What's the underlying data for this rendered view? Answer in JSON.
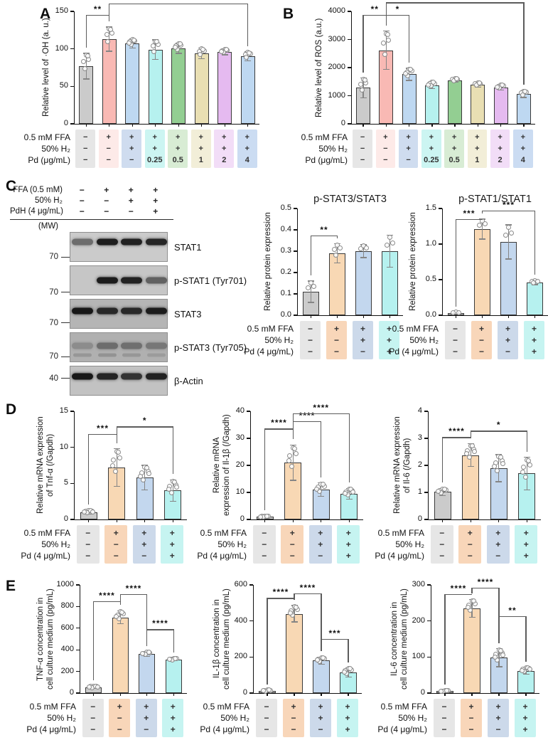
{
  "figure": {
    "panels": {
      "a": "A",
      "b": "B",
      "c": "C",
      "d": "D",
      "e": "E"
    }
  },
  "blot": {
    "header_rows": [
      {
        "label": "FFA (0.5 mM)",
        "values": [
          "−",
          "+",
          "+",
          "+"
        ]
      },
      {
        "label": "50% H₂",
        "values": [
          "−",
          "−",
          "+",
          "+"
        ]
      },
      {
        "label": "PdH (4 μg/mL)",
        "values": [
          "−",
          "−",
          "−",
          "+"
        ]
      }
    ],
    "mw_title": "(MW)",
    "strips": [
      {
        "label": "STAT1",
        "mw": "70",
        "bg": "#cbcbcb",
        "band_y": 0.32,
        "mw_y": 0.84,
        "bands": [
          0.5,
          0.92,
          0.9,
          0.88
        ]
      },
      {
        "label": "p-STAT1 (Tyr701)",
        "mw": "70",
        "bg": "#c6c6c6",
        "band_y": 0.5,
        "mw_y": 0.9,
        "bands": [
          0.04,
          0.93,
          0.9,
          0.55
        ]
      },
      {
        "label": "STAT3",
        "mw": "70",
        "bg": "#b5b5b5",
        "band_y": 0.4,
        "mw_y": 0.8,
        "noisy": true,
        "bands": [
          0.95,
          0.85,
          0.85,
          0.92
        ]
      },
      {
        "label": "p-STAT3 (Tyr705)",
        "mw": "70",
        "bg": "#b0b0b0",
        "band_y": 0.45,
        "mw_y": 0.82,
        "noisy": true,
        "bands": [
          0.22,
          0.42,
          0.4,
          0.35
        ],
        "bands2": [
          0.15,
          0.18,
          0.15,
          0.12
        ]
      },
      {
        "label": "β-Actin",
        "mw": "40",
        "bg": "#c2c2c2",
        "band_y": 0.35,
        "mw_y": 0.42,
        "bands": [
          0.95,
          0.88,
          0.8,
          0.9
        ]
      }
    ]
  },
  "chart_data": [
    {
      "type": "bar",
      "ylabel_lines": [
        "Relative level of ·OH (a. u.)"
      ],
      "yticks": [
        "0",
        "50",
        "100",
        "150"
      ],
      "ylim": [
        0,
        150
      ],
      "values": [
        77,
        113,
        107,
        99,
        101,
        94,
        96,
        90
      ],
      "errors": [
        17,
        16,
        6,
        13,
        7,
        7,
        4,
        6
      ],
      "n_points": [
        5,
        5,
        6,
        5,
        6,
        5,
        6,
        5
      ],
      "bar_colors": [
        "#cbcbcb",
        "#f9b9b4",
        "#bed8f1",
        "#b6f1ef",
        "#93ce92",
        "#e9dfb3",
        "#e5baf0",
        "#bed8f1"
      ],
      "cond_colors": [
        "#e6e6e6",
        "#fdeae8",
        "#cfdcef",
        "#ccf5f2",
        "#d8ecd4",
        "#f2eed8",
        "#f2ddf7",
        "#cbdcf2"
      ],
      "conditions": [
        {
          "label": "0.5 mM FFA",
          "values": [
            "−",
            "+",
            "+",
            "+",
            "+",
            "+",
            "+",
            "+"
          ]
        },
        {
          "label": "50% H₂",
          "values": [
            "−",
            "−",
            "+",
            "+",
            "+",
            "+",
            "+",
            "+"
          ]
        },
        {
          "label": "Pd (μg/mL)",
          "values": [
            "−",
            "−",
            "−",
            "0.25",
            "0.5",
            "1",
            "2",
            "4"
          ]
        }
      ],
      "sig": [
        {
          "i": 0,
          "j": 1,
          "stars": "**",
          "frac": 0.03
        },
        {
          "i": 1,
          "j": 7,
          "stars": "*",
          "frac": -0.07
        }
      ]
    },
    {
      "type": "bar",
      "ylabel_lines": [
        "Relative level of ROS (a.u.)"
      ],
      "yticks": [
        "0",
        "1000",
        "2000",
        "3000",
        "4000"
      ],
      "ylim": [
        0,
        4000
      ],
      "values": [
        1280,
        2620,
        1760,
        1380,
        1550,
        1390,
        1300,
        1060
      ],
      "errors": [
        350,
        680,
        220,
        120,
        60,
        80,
        90,
        120
      ],
      "n_points": [
        5,
        5,
        6,
        6,
        5,
        5,
        6,
        5
      ],
      "bar_colors": [
        "#cbcbcb",
        "#f9b9b4",
        "#bed8f1",
        "#b6f1ef",
        "#93ce92",
        "#e9dfb3",
        "#e5baf0",
        "#bed8f1"
      ],
      "cond_colors": [
        "#e6e6e6",
        "#fdeae8",
        "#cfdcef",
        "#ccf5f2",
        "#d8ecd4",
        "#f2eed8",
        "#f2ddf7",
        "#cbdcf2"
      ],
      "conditions": [
        {
          "label": "0.5 mM FFA",
          "values": [
            "−",
            "+",
            "+",
            "+",
            "+",
            "+",
            "+",
            "+"
          ]
        },
        {
          "label": "50% H₂",
          "values": [
            "−",
            "−",
            "+",
            "+",
            "+",
            "+",
            "+",
            "+"
          ]
        },
        {
          "label": "Pd (μg/mL)",
          "values": [
            "−",
            "−",
            "−",
            "0.25",
            "0.5",
            "1",
            "2",
            "4"
          ]
        }
      ],
      "sig": [
        {
          "i": 0,
          "j": 1,
          "stars": "**",
          "frac": 0.03
        },
        {
          "i": 1,
          "j": 2,
          "stars": "*",
          "frac": 0.03
        },
        {
          "i": 1,
          "j": 7,
          "stars": "**",
          "frac": -0.08
        }
      ]
    },
    {
      "type": "bar",
      "title": "p-STAT3/STAT3",
      "ylabel_lines": [
        "Relative protein expression"
      ],
      "yticks": [
        "0.0",
        "0.1",
        "0.2",
        "0.3",
        "0.4",
        "0.5"
      ],
      "ylim": [
        0,
        0.5
      ],
      "values": [
        0.11,
        0.29,
        0.3,
        0.3
      ],
      "errors": [
        0.05,
        0.045,
        0.03,
        0.075
      ],
      "n_points": [
        3,
        4,
        3,
        3
      ],
      "bar_colors": [
        "#cbcbcb",
        "#f8d8b4",
        "#c3d7ee",
        "#b6f1ef"
      ],
      "cond_colors": [
        "#e6e6e6",
        "#f8d6b9",
        "#ccd9ea",
        "#c6f4f1"
      ],
      "conditions": [
        {
          "label": "0.5 mM FFA",
          "values": [
            "−",
            "+",
            "+",
            "+"
          ]
        },
        {
          "label": "50% H₂",
          "values": [
            "−",
            "−",
            "+",
            "+"
          ]
        },
        {
          "label": "Pd (4 μg/mL)",
          "values": [
            "−",
            "−",
            "−",
            "+"
          ]
        }
      ],
      "sig": [
        {
          "i": 0,
          "j": 1,
          "stars": "**",
          "frac": 0.25
        }
      ]
    },
    {
      "type": "bar",
      "title": "p-STAT1/STAT1",
      "ylabel_lines": [
        "Relative protein expression"
      ],
      "yticks": [
        "0.0",
        "0.5",
        "1.0",
        "1.5"
      ],
      "ylim": [
        0,
        1.5
      ],
      "values": [
        0.03,
        1.21,
        1.03,
        0.46
      ],
      "errors": [
        0.012,
        0.14,
        0.24,
        0.03
      ],
      "n_points": [
        3,
        3,
        3,
        4
      ],
      "bar_colors": [
        "#cbcbcb",
        "#f8d8b4",
        "#c3d7ee",
        "#b6f1ef"
      ],
      "cond_colors": [
        "#e6e6e6",
        "#f8d6b9",
        "#ccd9ea",
        "#c6f4f1"
      ],
      "conditions": [
        {
          "label": "0.5 mM FFA",
          "values": [
            "−",
            "+",
            "+",
            "+"
          ]
        },
        {
          "label": "50% H₂",
          "values": [
            "−",
            "−",
            "+",
            "+"
          ]
        },
        {
          "label": "Pd (4 μg/mL)",
          "values": [
            "−",
            "−",
            "−",
            "+"
          ]
        }
      ],
      "sig": [
        {
          "i": 0,
          "j": 1,
          "stars": "***",
          "frac": 0.1
        },
        {
          "i": 1,
          "j": 3,
          "stars": "***",
          "frac": 0.02
        }
      ]
    },
    {
      "type": "bar",
      "ylabel_lines": [
        "Relative mRNA expression",
        "of Tnf-α (/Gapdh)"
      ],
      "yticks": [
        "0",
        "5",
        "10",
        "15"
      ],
      "ylim": [
        0,
        15
      ],
      "values": [
        1.0,
        7.2,
        5.8,
        4.0
      ],
      "errors": [
        0.25,
        2.6,
        1.7,
        1.5
      ],
      "n_points": [
        7,
        6,
        7,
        7
      ],
      "bar_colors": [
        "#cbcbcb",
        "#f8d8b4",
        "#c3d7ee",
        "#b6f1ef"
      ],
      "cond_colors": [
        "#e6e6e6",
        "#f8d6b9",
        "#ccd9ea",
        "#c6f4f1"
      ],
      "conditions": [
        {
          "label": "0.5 mM FFA",
          "values": [
            "−",
            "+",
            "+",
            "+"
          ]
        },
        {
          "label": "50% H₂",
          "values": [
            "−",
            "−",
            "+",
            "+"
          ]
        },
        {
          "label": "Pd (4 μg/mL)",
          "values": [
            "−",
            "−",
            "−",
            "+"
          ]
        }
      ],
      "sig": [
        {
          "i": 0,
          "j": 1,
          "stars": "***",
          "frac": 0.21
        },
        {
          "i": 1,
          "j": 3,
          "stars": "*",
          "frac": 0.14
        }
      ]
    },
    {
      "type": "bar",
      "ylabel_lines": [
        "Relative mRNA",
        "expression of Il-1β (/Gapdh)"
      ],
      "yticks": [
        "0",
        "10",
        "20",
        "30",
        "40"
      ],
      "ylim": [
        0,
        40
      ],
      "values": [
        1.0,
        21,
        11,
        9.5
      ],
      "errors": [
        0.3,
        6.5,
        2.5,
        2.0
      ],
      "n_points": [
        6,
        6,
        6,
        7
      ],
      "bar_colors": [
        "#cbcbcb",
        "#f8d8b4",
        "#c3d7ee",
        "#b6f1ef"
      ],
      "cond_colors": [
        "#e6e6e6",
        "#f8d6b9",
        "#ccd9ea",
        "#c6f4f1"
      ],
      "conditions": [
        {
          "label": "0.5 mM FFA",
          "values": [
            "−",
            "+",
            "+",
            "+"
          ]
        },
        {
          "label": "50% H₂",
          "values": [
            "−",
            "−",
            "+",
            "+"
          ]
        },
        {
          "label": "Pd (4 μg/mL)",
          "values": [
            "−",
            "−",
            "−",
            "+"
          ]
        }
      ],
      "sig": [
        {
          "i": 0,
          "j": 1,
          "stars": "****",
          "frac": 0.16
        },
        {
          "i": 1,
          "j": 2,
          "stars": "****",
          "frac": 0.09
        },
        {
          "i": 1,
          "j": 3,
          "stars": "****",
          "frac": 0.02
        }
      ]
    },
    {
      "type": "bar",
      "ylabel_lines": [
        "Relative mRNA expression",
        "of Il-6 (/Gapdh)"
      ],
      "yticks": [
        "0",
        "1",
        "2",
        "3",
        "4"
      ],
      "ylim": [
        0,
        4
      ],
      "values": [
        1.02,
        2.38,
        1.9,
        1.7
      ],
      "errors": [
        0.13,
        0.42,
        0.5,
        0.6
      ],
      "n_points": [
        6,
        7,
        7,
        6
      ],
      "bar_colors": [
        "#cbcbcb",
        "#f8d8b4",
        "#c3d7ee",
        "#b6f1ef"
      ],
      "cond_colors": [
        "#e6e6e6",
        "#f8d6b9",
        "#ccd9ea",
        "#c6f4f1"
      ],
      "conditions": [
        {
          "label": "0.5 mM FFA",
          "values": [
            "−",
            "+",
            "+",
            "+"
          ]
        },
        {
          "label": "50% H₂",
          "values": [
            "−",
            "−",
            "+",
            "+"
          ]
        },
        {
          "label": "Pd (4 μg/mL)",
          "values": [
            "−",
            "−",
            "−",
            "+"
          ]
        }
      ],
      "sig": [
        {
          "i": 0,
          "j": 1,
          "stars": "****",
          "frac": 0.24
        },
        {
          "i": 1,
          "j": 3,
          "stars": "*",
          "frac": 0.18
        }
      ]
    },
    {
      "type": "bar",
      "ylabel_lines": [
        "TNF-α concentration in",
        "cell culture medium (pg/mL)"
      ],
      "yticks": [
        "0",
        "200",
        "400",
        "600",
        "800",
        "1000"
      ],
      "ylim": [
        0,
        1000
      ],
      "values": [
        55,
        700,
        360,
        310
      ],
      "errors": [
        12,
        60,
        20,
        12
      ],
      "n_points": [
        7,
        6,
        6,
        6
      ],
      "bar_colors": [
        "#cbcbcb",
        "#f8d8b4",
        "#c3d7ee",
        "#b6f1ef"
      ],
      "cond_colors": [
        "#e6e6e6",
        "#f8d6b9",
        "#ccd9ea",
        "#c6f4f1"
      ],
      "conditions": [
        {
          "label": "0.5 mM FFA",
          "values": [
            "−",
            "+",
            "+",
            "+"
          ]
        },
        {
          "label": "50% H₂",
          "values": [
            "−",
            "−",
            "+",
            "+"
          ]
        },
        {
          "label": "Pd (4 μg/mL)",
          "values": [
            "−",
            "−",
            "−",
            "+"
          ]
        }
      ],
      "sig": [
        {
          "i": 0,
          "j": 1,
          "stars": "****",
          "frac": 0.15
        },
        {
          "i": 1,
          "j": 2,
          "stars": "****",
          "frac": 0.085
        },
        {
          "i": 2,
          "j": 3,
          "stars": "****",
          "frac": 0.41
        }
      ]
    },
    {
      "type": "bar",
      "ylabel_lines": [
        "IL-1β concentration in",
        "cell culture medium (pg/mL)"
      ],
      "yticks": [
        "0",
        "200",
        "400",
        "600"
      ],
      "ylim": [
        0,
        600
      ],
      "values": [
        12,
        440,
        180,
        115
      ],
      "errors": [
        5,
        45,
        20,
        25
      ],
      "n_points": [
        6,
        6,
        6,
        6
      ],
      "bar_colors": [
        "#cbcbcb",
        "#f8d8b4",
        "#c3d7ee",
        "#b6f1ef"
      ],
      "cond_colors": [
        "#e6e6e6",
        "#f8d6b9",
        "#ccd9ea",
        "#c6f4f1"
      ],
      "conditions": [
        {
          "label": "0.5 mM FFA",
          "values": [
            "−",
            "+",
            "+",
            "+"
          ]
        },
        {
          "label": "50% H₂",
          "values": [
            "−",
            "−",
            "+",
            "+"
          ]
        },
        {
          "label": "Pd (4 μg/mL)",
          "values": [
            "−",
            "−",
            "−",
            "+"
          ]
        }
      ],
      "sig": [
        {
          "i": 0,
          "j": 1,
          "stars": "****",
          "frac": 0.12
        },
        {
          "i": 1,
          "j": 2,
          "stars": "****",
          "frac": 0.08
        },
        {
          "i": 2,
          "j": 3,
          "stars": "***",
          "frac": 0.5
        }
      ]
    },
    {
      "type": "bar",
      "ylabel_lines": [
        "IL-6 concentration in",
        "cell culture medium (pg/mL)"
      ],
      "yticks": [
        "0",
        "100",
        "200",
        "300"
      ],
      "ylim": [
        0,
        300
      ],
      "values": [
        5,
        235,
        98,
        62
      ],
      "errors": [
        2,
        25,
        25,
        10
      ],
      "n_points": [
        6,
        6,
        7,
        7
      ],
      "bar_colors": [
        "#cbcbcb",
        "#f8d8b4",
        "#c3d7ee",
        "#b6f1ef"
      ],
      "cond_colors": [
        "#e6e6e6",
        "#f8d6b9",
        "#ccd9ea",
        "#c6f4f1"
      ],
      "conditions": [
        {
          "label": "0.5 mM FFA",
          "values": [
            "−",
            "+",
            "+",
            "+"
          ]
        },
        {
          "label": "50% H₂",
          "values": [
            "−",
            "−",
            "+",
            "+"
          ]
        },
        {
          "label": "Pd (4 μg/mL)",
          "values": [
            "−",
            "−",
            "−",
            "+"
          ]
        }
      ],
      "sig": [
        {
          "i": 0,
          "j": 1,
          "stars": "****",
          "frac": 0.085
        },
        {
          "i": 1,
          "j": 2,
          "stars": "****",
          "frac": 0.027
        },
        {
          "i": 2,
          "j": 3,
          "stars": "**",
          "frac": 0.29
        }
      ]
    }
  ]
}
